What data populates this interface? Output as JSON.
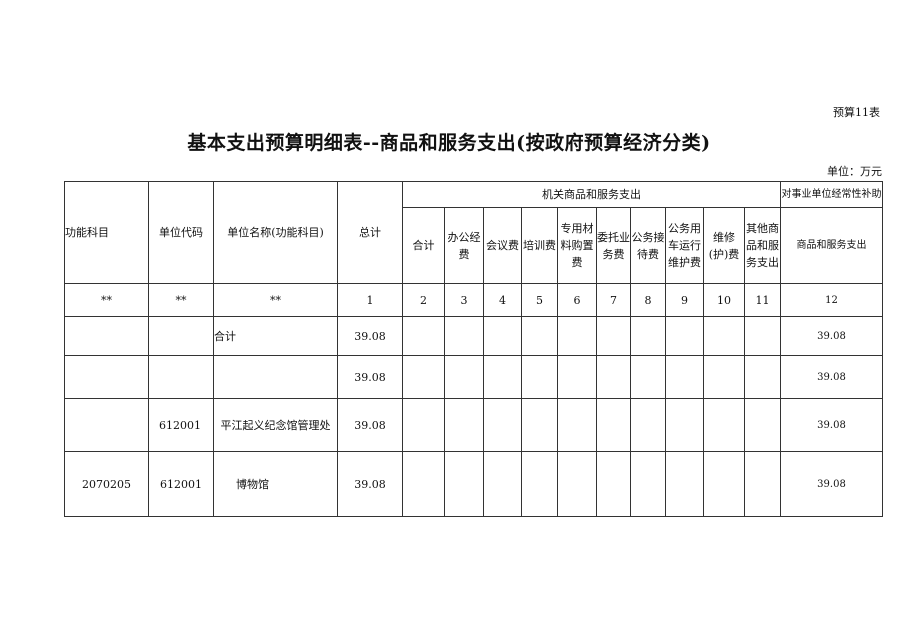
{
  "table_tag": "预算11表",
  "title": "基本支出预算明细表--商品和服务支出(按政府预算经济分类)",
  "unit": "单位：万元",
  "header": {
    "func_subject": "功能科目",
    "unit_code": "单位代码",
    "unit_name": "单位名称(功能科目)",
    "total": "总计",
    "group_org": "机关商品和服务支出",
    "group_sub": "对事业单位经常性补助",
    "cols": [
      "合计",
      "办公经费",
      "会议费",
      "培训费",
      "专用材料购置费",
      "委托业务费",
      "公务接待费",
      "公务用车运行维护费",
      "维修(护)费",
      "其他商品和服务支出"
    ],
    "sub_col": "商品和服务支出"
  },
  "index_row": [
    "**",
    "**",
    "**",
    "1",
    "2",
    "3",
    "4",
    "5",
    "6",
    "7",
    "8",
    "9",
    "10",
    "11",
    "12"
  ],
  "rows": [
    {
      "func": "",
      "code": "",
      "name": "合计",
      "total": "39.08",
      "c12": "39.08"
    },
    {
      "func": "",
      "code": "",
      "name": "",
      "total": "39.08",
      "c12": "39.08"
    },
    {
      "func": "",
      "code": "612001",
      "name": "平江起义纪念馆管理处",
      "total": "39.08",
      "c12": "39.08"
    },
    {
      "func": "2070205",
      "code": "612001",
      "name": "博物馆",
      "total": "39.08",
      "c12": "39.08"
    }
  ]
}
